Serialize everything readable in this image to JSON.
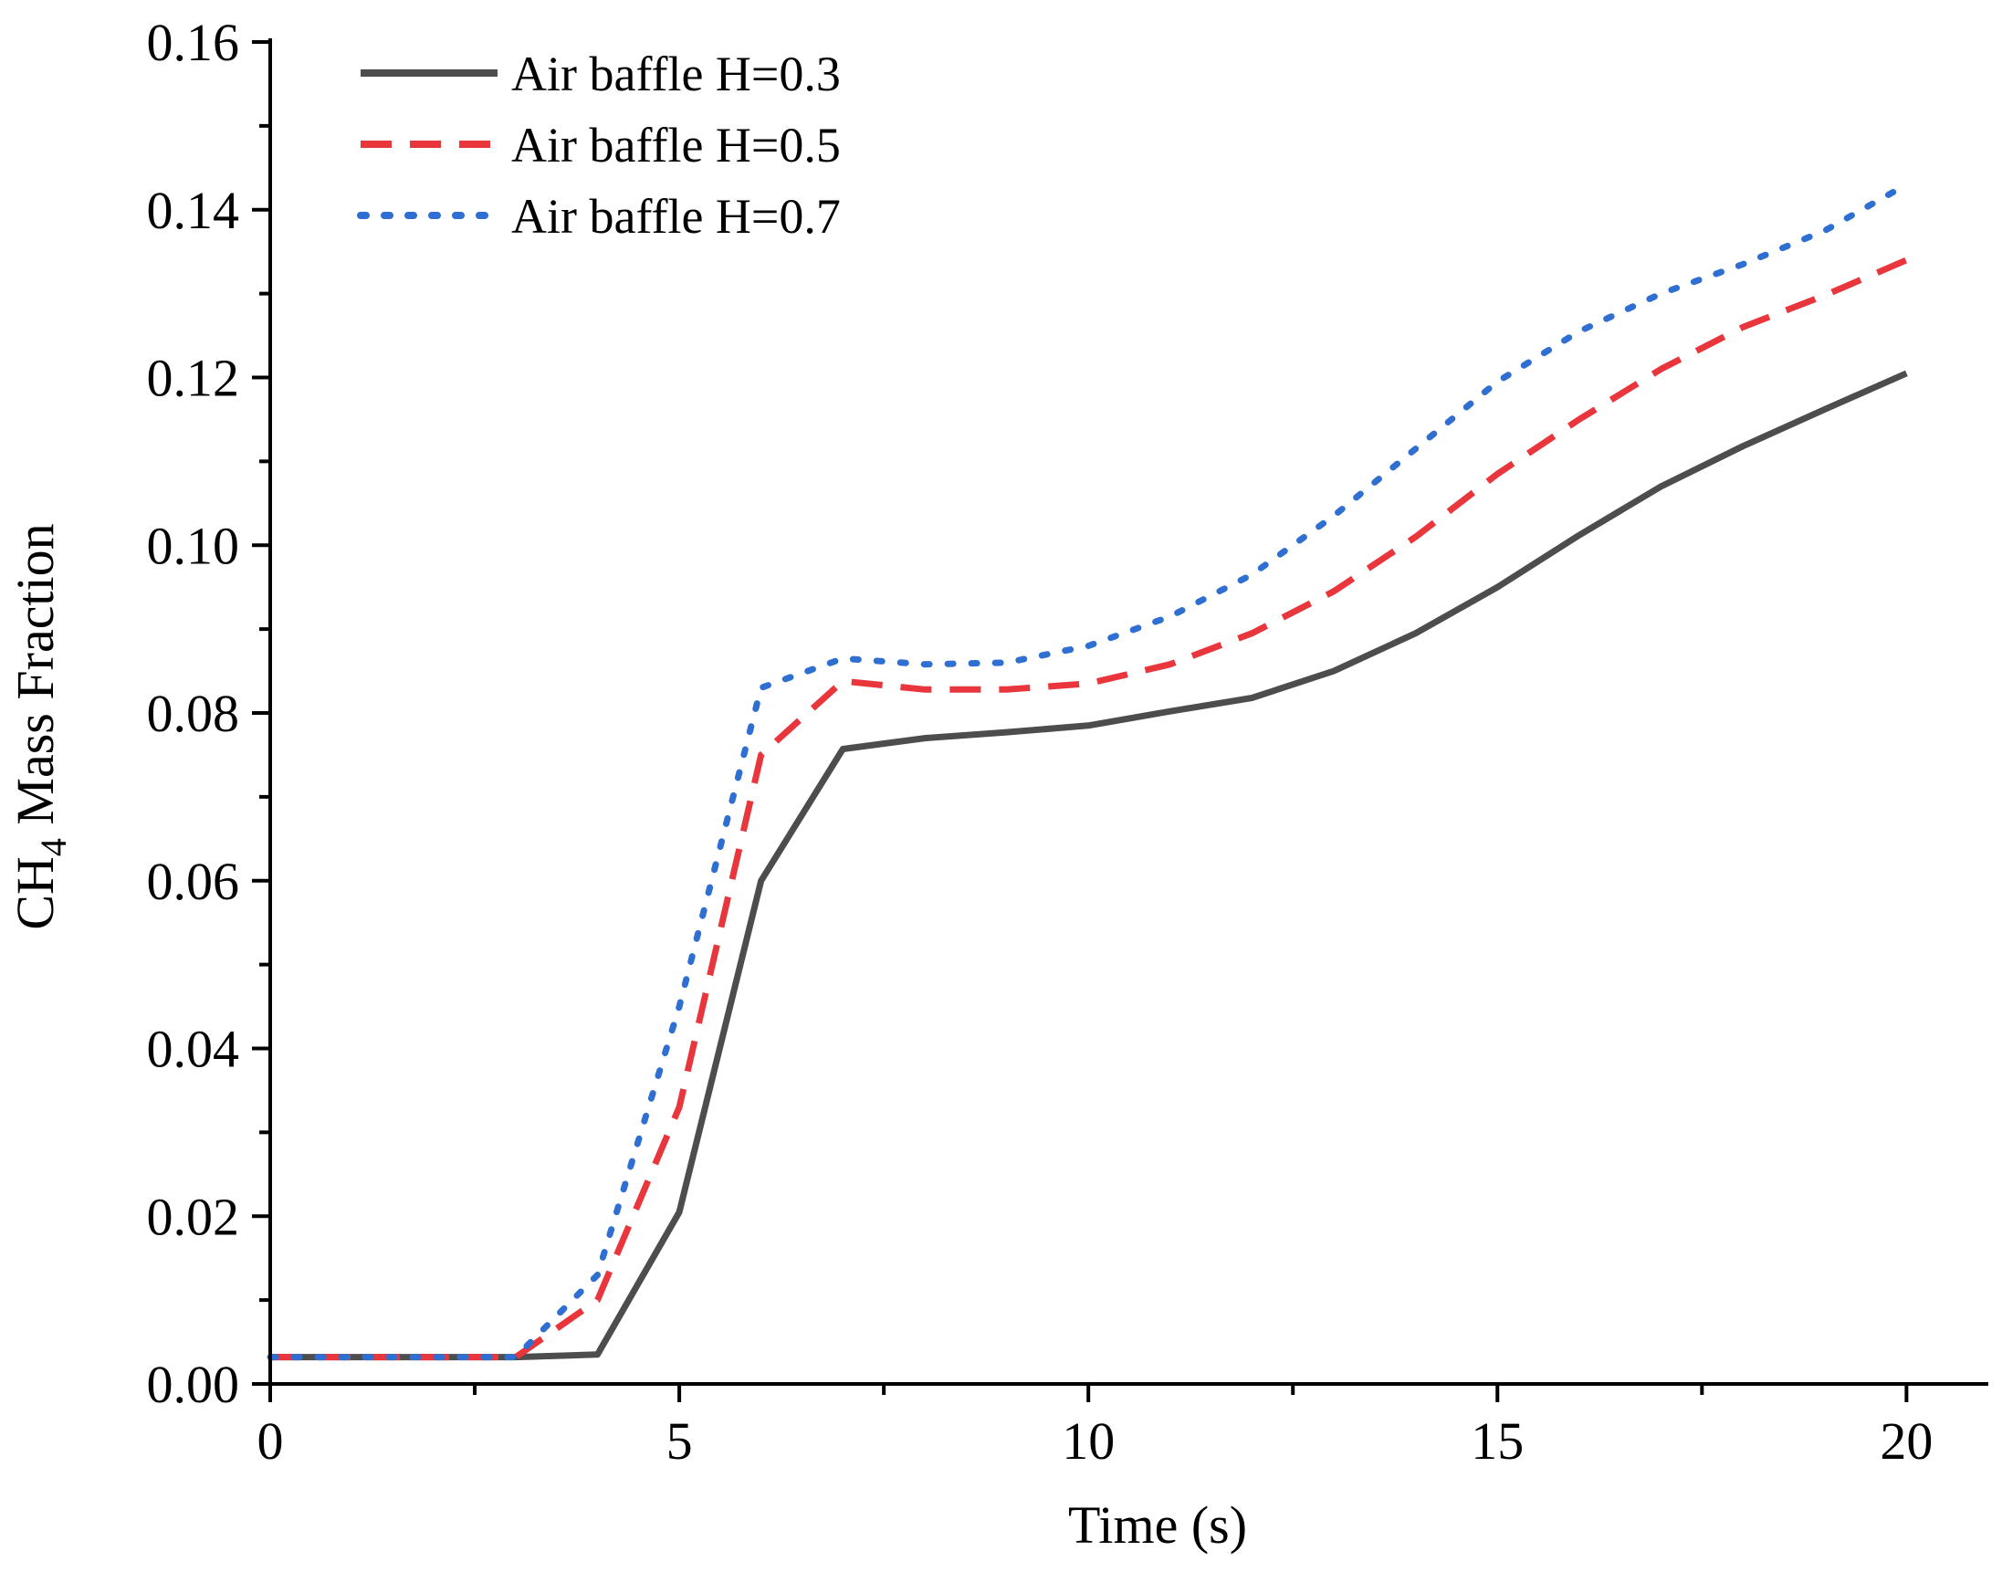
{
  "chart_data": {
    "type": "line",
    "xlabel": "Time (s)",
    "ylabel": {
      "prefix": "CH",
      "subscript": "4",
      "suffix": " Mass Fraction"
    },
    "xlim": [
      0,
      21
    ],
    "ylim": [
      0,
      0.16
    ],
    "x_ticks": [
      0,
      5,
      10,
      15,
      20
    ],
    "x_tick_labels": [
      "0",
      "5",
      "10",
      "15",
      "20"
    ],
    "x_minor_ticks": [
      2.5,
      7.5,
      12.5,
      17.5
    ],
    "y_ticks": [
      0,
      0.02,
      0.04,
      0.06,
      0.08,
      0.1,
      0.12,
      0.14,
      0.16
    ],
    "y_tick_labels": [
      "0.00",
      "0.02",
      "0.04",
      "0.06",
      "0.08",
      "0.10",
      "0.12",
      "0.14",
      "0.16"
    ],
    "y_minor_ticks": [
      0.01,
      0.03,
      0.05,
      0.07,
      0.09,
      0.11,
      0.13,
      0.15
    ],
    "legend_position": "top-left",
    "x": [
      0,
      1,
      2,
      3,
      4,
      5,
      6,
      7,
      8,
      9,
      10,
      11,
      12,
      13,
      14,
      15,
      16,
      17,
      18,
      19,
      20
    ],
    "series": [
      {
        "name": "Air baffle H=0.3",
        "color": "#4d4d4d",
        "style": "solid",
        "values": [
          0.0032,
          0.0032,
          0.0032,
          0.0032,
          0.0035,
          0.0205,
          0.06,
          0.0757,
          0.077,
          0.0777,
          0.0785,
          0.0802,
          0.0818,
          0.085,
          0.0895,
          0.095,
          0.1012,
          0.107,
          0.1118,
          0.1162,
          0.1205
        ]
      },
      {
        "name": "Air baffle H=0.5",
        "color": "#e8363c",
        "style": "dashed",
        "values": [
          0.0032,
          0.0032,
          0.0032,
          0.0032,
          0.01,
          0.033,
          0.075,
          0.0838,
          0.0828,
          0.0828,
          0.0835,
          0.0858,
          0.0895,
          0.0945,
          0.101,
          0.1085,
          0.115,
          0.121,
          0.126,
          0.1298,
          0.134
        ]
      },
      {
        "name": "Air baffle H=0.7",
        "color": "#2e6fd1",
        "style": "dotted",
        "values": [
          0.0032,
          0.0032,
          0.0032,
          0.0032,
          0.013,
          0.045,
          0.083,
          0.0865,
          0.0858,
          0.086,
          0.088,
          0.0915,
          0.0965,
          0.1035,
          0.1115,
          0.1195,
          0.1255,
          0.13,
          0.1335,
          0.1375,
          0.143
        ]
      }
    ]
  }
}
